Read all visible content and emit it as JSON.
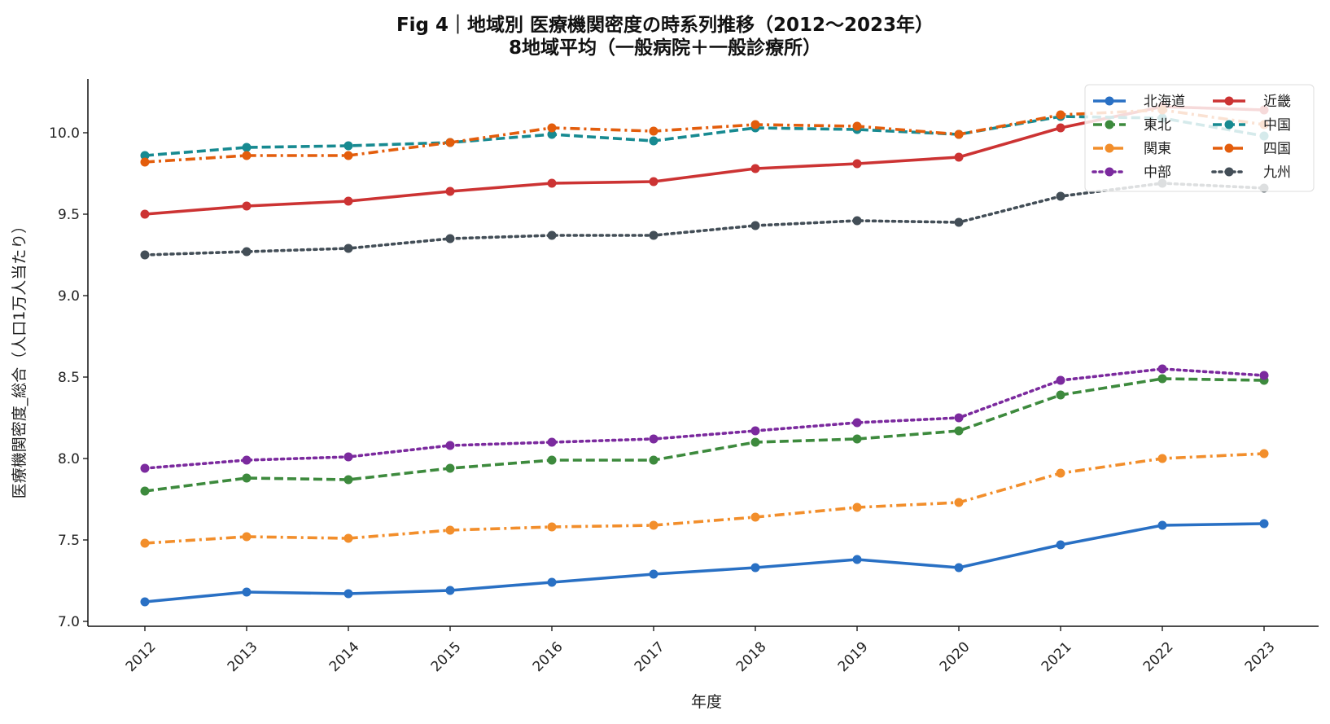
{
  "chart_data": {
    "type": "line",
    "title": "Fig 4｜地域別 医療機関密度の時系列推移（2012〜2023年）",
    "subtitle": "8地域平均（一般病院＋一般診療所）",
    "xlabel": "年度",
    "ylabel": "医療機関密度_総合（人口1万人当たり）",
    "x": [
      2012,
      2013,
      2014,
      2015,
      2016,
      2017,
      2018,
      2019,
      2020,
      2021,
      2022,
      2023
    ],
    "x_tick_labels": [
      "2012",
      "2013",
      "2014",
      "2015",
      "2016",
      "2017",
      "2018",
      "2019",
      "2020",
      "2021",
      "2022",
      "2023"
    ],
    "ylim": [
      6.97,
      10.33
    ],
    "y_ticks": [
      7.0,
      7.5,
      8.0,
      8.5,
      9.0,
      9.5,
      10.0
    ],
    "y_tick_labels": [
      "7.0",
      "7.5",
      "8.0",
      "8.5",
      "9.0",
      "9.5",
      "10.0"
    ],
    "grid": false,
    "legend_position": "top-right",
    "legend_columns": 2,
    "series": [
      {
        "name": "北海道",
        "color": "#2970c4",
        "style": "solid",
        "values": [
          7.12,
          7.18,
          7.17,
          7.19,
          7.24,
          7.29,
          7.33,
          7.38,
          7.33,
          7.47,
          7.59,
          7.6
        ]
      },
      {
        "name": "東北",
        "color": "#3d8a3d",
        "style": "dashed",
        "values": [
          7.8,
          7.88,
          7.87,
          7.94,
          7.99,
          7.99,
          8.1,
          8.12,
          8.17,
          8.39,
          8.49,
          8.48
        ]
      },
      {
        "name": "関東",
        "color": "#f28e2b",
        "style": "dashdot",
        "values": [
          7.48,
          7.52,
          7.51,
          7.56,
          7.58,
          7.59,
          7.64,
          7.7,
          7.73,
          7.91,
          8.0,
          8.03
        ]
      },
      {
        "name": "中部",
        "color": "#7b2a9e",
        "style": "dotted",
        "values": [
          7.94,
          7.99,
          8.01,
          8.08,
          8.1,
          8.12,
          8.17,
          8.22,
          8.25,
          8.48,
          8.55,
          8.51
        ]
      },
      {
        "name": "近畿",
        "color": "#cc3333",
        "style": "solid",
        "values": [
          9.5,
          9.55,
          9.58,
          9.64,
          9.69,
          9.7,
          9.78,
          9.81,
          9.85,
          10.03,
          10.16,
          10.14
        ]
      },
      {
        "name": "中国",
        "color": "#178a91",
        "style": "dashed",
        "values": [
          9.86,
          9.91,
          9.92,
          9.94,
          9.99,
          9.95,
          10.03,
          10.02,
          9.99,
          10.1,
          10.09,
          9.98
        ]
      },
      {
        "name": "四国",
        "color": "#e35d0c",
        "style": "dashdot",
        "values": [
          9.82,
          9.86,
          9.86,
          9.94,
          10.03,
          10.01,
          10.05,
          10.04,
          9.99,
          10.11,
          10.14,
          10.05
        ]
      },
      {
        "name": "九州",
        "color": "#434e57",
        "style": "dotted",
        "values": [
          9.25,
          9.27,
          9.29,
          9.35,
          9.37,
          9.37,
          9.43,
          9.46,
          9.45,
          9.61,
          9.69,
          9.66
        ]
      }
    ]
  }
}
